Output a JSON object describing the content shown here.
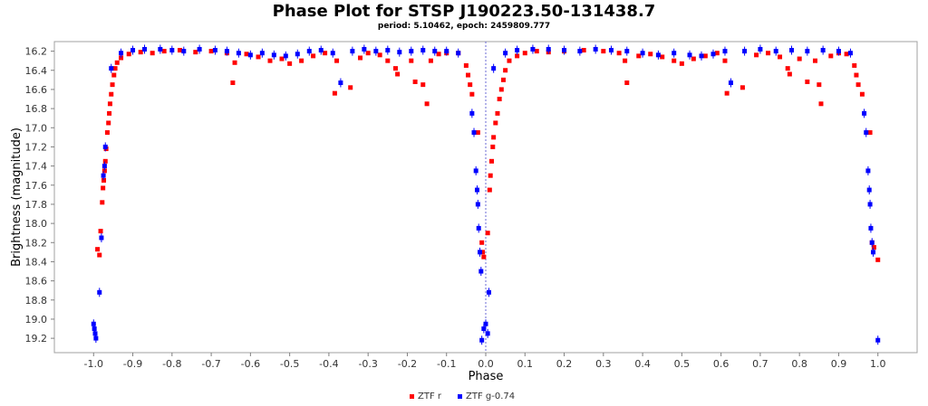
{
  "chart_data": {
    "type": "scatter",
    "title": "Phase Plot for STSP J190223.50-131438.7",
    "subtitle": "period: 5.10462, epoch: 2459809.777",
    "xlabel": "Phase",
    "ylabel": "Brightness (magnitude)",
    "xlim": [
      -1.1,
      1.1
    ],
    "ylim": [
      19.35,
      16.1
    ],
    "y_inverted": true,
    "xticks": [
      -1.0,
      -0.9,
      -0.8,
      -0.7,
      -0.6,
      -0.5,
      -0.4,
      -0.3,
      -0.2,
      -0.1,
      0.0,
      0.1,
      0.2,
      0.3,
      0.4,
      0.5,
      0.6,
      0.7,
      0.8,
      0.9,
      1.0
    ],
    "xtick_labels": [
      "-1.0",
      "-0.9",
      "-0.8",
      "-0.7",
      "-0.6",
      "-0.5",
      "-0.4",
      "-0.3",
      "-0.2",
      "-0.1",
      "0.0",
      "0.1",
      "0.2",
      "0.3",
      "0.4",
      "0.5",
      "0.6",
      "0.7",
      "0.8",
      "0.9",
      "1.0"
    ],
    "yticks": [
      16.2,
      16.4,
      16.6,
      16.8,
      17.0,
      17.2,
      17.4,
      17.6,
      17.8,
      18.0,
      18.2,
      18.4,
      18.6,
      18.8,
      19.0,
      19.2
    ],
    "ytick_labels": [
      "16.2",
      "16.4",
      "16.6",
      "16.8",
      "17.0",
      "17.2",
      "17.4",
      "17.6",
      "17.8",
      "18.0",
      "18.2",
      "18.4",
      "18.6",
      "18.8",
      "19.0",
      "19.2"
    ],
    "grid": false,
    "zero_line": true,
    "legend_position": "bottom",
    "series": [
      {
        "name": "ZTF r",
        "color": "#ff0000",
        "points": [
          [
            -0.99,
            18.27
          ],
          [
            -0.985,
            18.33
          ],
          [
            -0.982,
            18.08
          ],
          [
            -0.978,
            17.78
          ],
          [
            -0.976,
            17.63
          ],
          [
            -0.974,
            17.55
          ],
          [
            -0.972,
            17.45
          ],
          [
            -0.97,
            17.35
          ],
          [
            -0.968,
            17.22
          ],
          [
            -0.965,
            17.05
          ],
          [
            -0.962,
            16.95
          ],
          [
            -0.96,
            16.85
          ],
          [
            -0.958,
            16.75
          ],
          [
            -0.955,
            16.65
          ],
          [
            -0.952,
            16.55
          ],
          [
            -0.948,
            16.45
          ],
          [
            -0.945,
            16.38
          ],
          [
            -0.94,
            16.32
          ],
          [
            -0.93,
            16.27
          ],
          [
            -0.91,
            16.23
          ],
          [
            -0.88,
            16.21
          ],
          [
            -0.85,
            16.22
          ],
          [
            -0.82,
            16.2
          ],
          [
            -0.78,
            16.19
          ],
          [
            -0.74,
            16.21
          ],
          [
            -0.7,
            16.2
          ],
          [
            -0.66,
            16.22
          ],
          [
            -0.64,
            16.32
          ],
          [
            -0.645,
            16.53
          ],
          [
            -0.61,
            16.23
          ],
          [
            -0.58,
            16.26
          ],
          [
            -0.55,
            16.3
          ],
          [
            -0.52,
            16.28
          ],
          [
            -0.5,
            16.33
          ],
          [
            -0.47,
            16.3
          ],
          [
            -0.44,
            16.25
          ],
          [
            -0.41,
            16.22
          ],
          [
            -0.38,
            16.3
          ],
          [
            -0.385,
            16.64
          ],
          [
            -0.345,
            16.58
          ],
          [
            -0.32,
            16.27
          ],
          [
            -0.3,
            16.22
          ],
          [
            -0.27,
            16.24
          ],
          [
            -0.25,
            16.3
          ],
          [
            -0.23,
            16.38
          ],
          [
            -0.225,
            16.44
          ],
          [
            -0.19,
            16.3
          ],
          [
            -0.18,
            16.52
          ],
          [
            -0.16,
            16.55
          ],
          [
            -0.15,
            16.75
          ],
          [
            -0.14,
            16.3
          ],
          [
            -0.12,
            16.23
          ],
          [
            -0.1,
            16.22
          ],
          [
            -0.07,
            16.22
          ],
          [
            -0.05,
            16.35
          ],
          [
            -0.045,
            16.45
          ],
          [
            -0.04,
            16.55
          ],
          [
            -0.035,
            16.65
          ],
          [
            -0.02,
            17.05
          ],
          [
            -0.01,
            18.2
          ],
          [
            -0.008,
            18.3
          ],
          [
            -0.005,
            18.35
          ],
          [
            0.005,
            18.1
          ],
          [
            0.01,
            17.65
          ],
          [
            0.012,
            17.5
          ],
          [
            0.015,
            17.35
          ],
          [
            0.018,
            17.2
          ],
          [
            0.02,
            17.1
          ],
          [
            0.025,
            16.95
          ],
          [
            0.03,
            16.85
          ],
          [
            0.035,
            16.7
          ],
          [
            0.04,
            16.6
          ],
          [
            0.045,
            16.5
          ],
          [
            0.05,
            16.4
          ],
          [
            0.06,
            16.3
          ],
          [
            0.08,
            16.25
          ],
          [
            0.1,
            16.22
          ],
          [
            0.13,
            16.2
          ],
          [
            0.16,
            16.21
          ],
          [
            0.2,
            16.2
          ],
          [
            0.25,
            16.19
          ],
          [
            0.3,
            16.2
          ],
          [
            0.34,
            16.22
          ],
          [
            0.355,
            16.3
          ],
          [
            0.36,
            16.53
          ],
          [
            0.39,
            16.25
          ],
          [
            0.42,
            16.23
          ],
          [
            0.45,
            16.26
          ],
          [
            0.48,
            16.3
          ],
          [
            0.5,
            16.33
          ],
          [
            0.53,
            16.28
          ],
          [
            0.56,
            16.25
          ],
          [
            0.59,
            16.22
          ],
          [
            0.61,
            16.3
          ],
          [
            0.615,
            16.64
          ],
          [
            0.655,
            16.58
          ],
          [
            0.69,
            16.24
          ],
          [
            0.72,
            16.22
          ],
          [
            0.75,
            16.26
          ],
          [
            0.77,
            16.38
          ],
          [
            0.775,
            16.44
          ],
          [
            0.8,
            16.28
          ],
          [
            0.82,
            16.52
          ],
          [
            0.84,
            16.3
          ],
          [
            0.85,
            16.55
          ],
          [
            0.855,
            16.75
          ],
          [
            0.88,
            16.25
          ],
          [
            0.9,
            16.22
          ],
          [
            0.92,
            16.23
          ],
          [
            0.94,
            16.35
          ],
          [
            0.945,
            16.45
          ],
          [
            0.95,
            16.55
          ],
          [
            0.96,
            16.65
          ],
          [
            0.98,
            17.05
          ],
          [
            0.985,
            18.2
          ],
          [
            0.99,
            18.25
          ],
          [
            1.0,
            18.38
          ]
        ]
      },
      {
        "name": "ZTF g-0.74",
        "color": "#0000ff",
        "points": [
          [
            -1.0,
            19.05
          ],
          [
            -0.998,
            19.1
          ],
          [
            -0.996,
            19.15
          ],
          [
            -0.994,
            19.2
          ],
          [
            -0.985,
            18.72
          ],
          [
            -0.98,
            18.15
          ],
          [
            -0.975,
            17.5
          ],
          [
            -0.972,
            17.4
          ],
          [
            -0.97,
            17.2
          ],
          [
            -0.955,
            16.38
          ],
          [
            -0.93,
            16.22
          ],
          [
            -0.9,
            16.19
          ],
          [
            -0.87,
            16.18
          ],
          [
            -0.83,
            16.18
          ],
          [
            -0.8,
            16.19
          ],
          [
            -0.77,
            16.2
          ],
          [
            -0.73,
            16.18
          ],
          [
            -0.69,
            16.19
          ],
          [
            -0.66,
            16.2
          ],
          [
            -0.63,
            16.22
          ],
          [
            -0.6,
            16.24
          ],
          [
            -0.57,
            16.22
          ],
          [
            -0.54,
            16.24
          ],
          [
            -0.51,
            16.25
          ],
          [
            -0.48,
            16.23
          ],
          [
            -0.45,
            16.2
          ],
          [
            -0.42,
            16.19
          ],
          [
            -0.39,
            16.22
          ],
          [
            -0.37,
            16.53
          ],
          [
            -0.34,
            16.2
          ],
          [
            -0.31,
            16.18
          ],
          [
            -0.28,
            16.2
          ],
          [
            -0.25,
            16.19
          ],
          [
            -0.22,
            16.21
          ],
          [
            -0.19,
            16.2
          ],
          [
            -0.16,
            16.19
          ],
          [
            -0.13,
            16.2
          ],
          [
            -0.1,
            16.2
          ],
          [
            -0.07,
            16.22
          ],
          [
            -0.035,
            16.85
          ],
          [
            -0.03,
            17.05
          ],
          [
            -0.025,
            17.45
          ],
          [
            -0.022,
            17.65
          ],
          [
            -0.02,
            17.8
          ],
          [
            -0.018,
            18.05
          ],
          [
            -0.015,
            18.3
          ],
          [
            -0.012,
            18.5
          ],
          [
            -0.01,
            19.22
          ],
          [
            -0.005,
            19.1
          ],
          [
            0.0,
            19.05
          ],
          [
            0.005,
            19.15
          ],
          [
            0.008,
            18.72
          ],
          [
            0.02,
            16.38
          ],
          [
            0.05,
            16.22
          ],
          [
            0.08,
            16.19
          ],
          [
            0.12,
            16.18
          ],
          [
            0.16,
            16.18
          ],
          [
            0.2,
            16.19
          ],
          [
            0.24,
            16.2
          ],
          [
            0.28,
            16.18
          ],
          [
            0.32,
            16.19
          ],
          [
            0.36,
            16.2
          ],
          [
            0.4,
            16.22
          ],
          [
            0.44,
            16.24
          ],
          [
            0.48,
            16.22
          ],
          [
            0.52,
            16.24
          ],
          [
            0.55,
            16.25
          ],
          [
            0.58,
            16.23
          ],
          [
            0.61,
            16.2
          ],
          [
            0.625,
            16.53
          ],
          [
            0.66,
            16.2
          ],
          [
            0.7,
            16.18
          ],
          [
            0.74,
            16.2
          ],
          [
            0.78,
            16.19
          ],
          [
            0.82,
            16.2
          ],
          [
            0.86,
            16.19
          ],
          [
            0.9,
            16.2
          ],
          [
            0.93,
            16.22
          ],
          [
            0.965,
            16.85
          ],
          [
            0.97,
            17.05
          ],
          [
            0.975,
            17.45
          ],
          [
            0.978,
            17.65
          ],
          [
            0.98,
            17.8
          ],
          [
            0.982,
            18.05
          ],
          [
            0.985,
            18.2
          ],
          [
            0.988,
            18.3
          ],
          [
            1.0,
            19.22
          ]
        ]
      }
    ]
  }
}
